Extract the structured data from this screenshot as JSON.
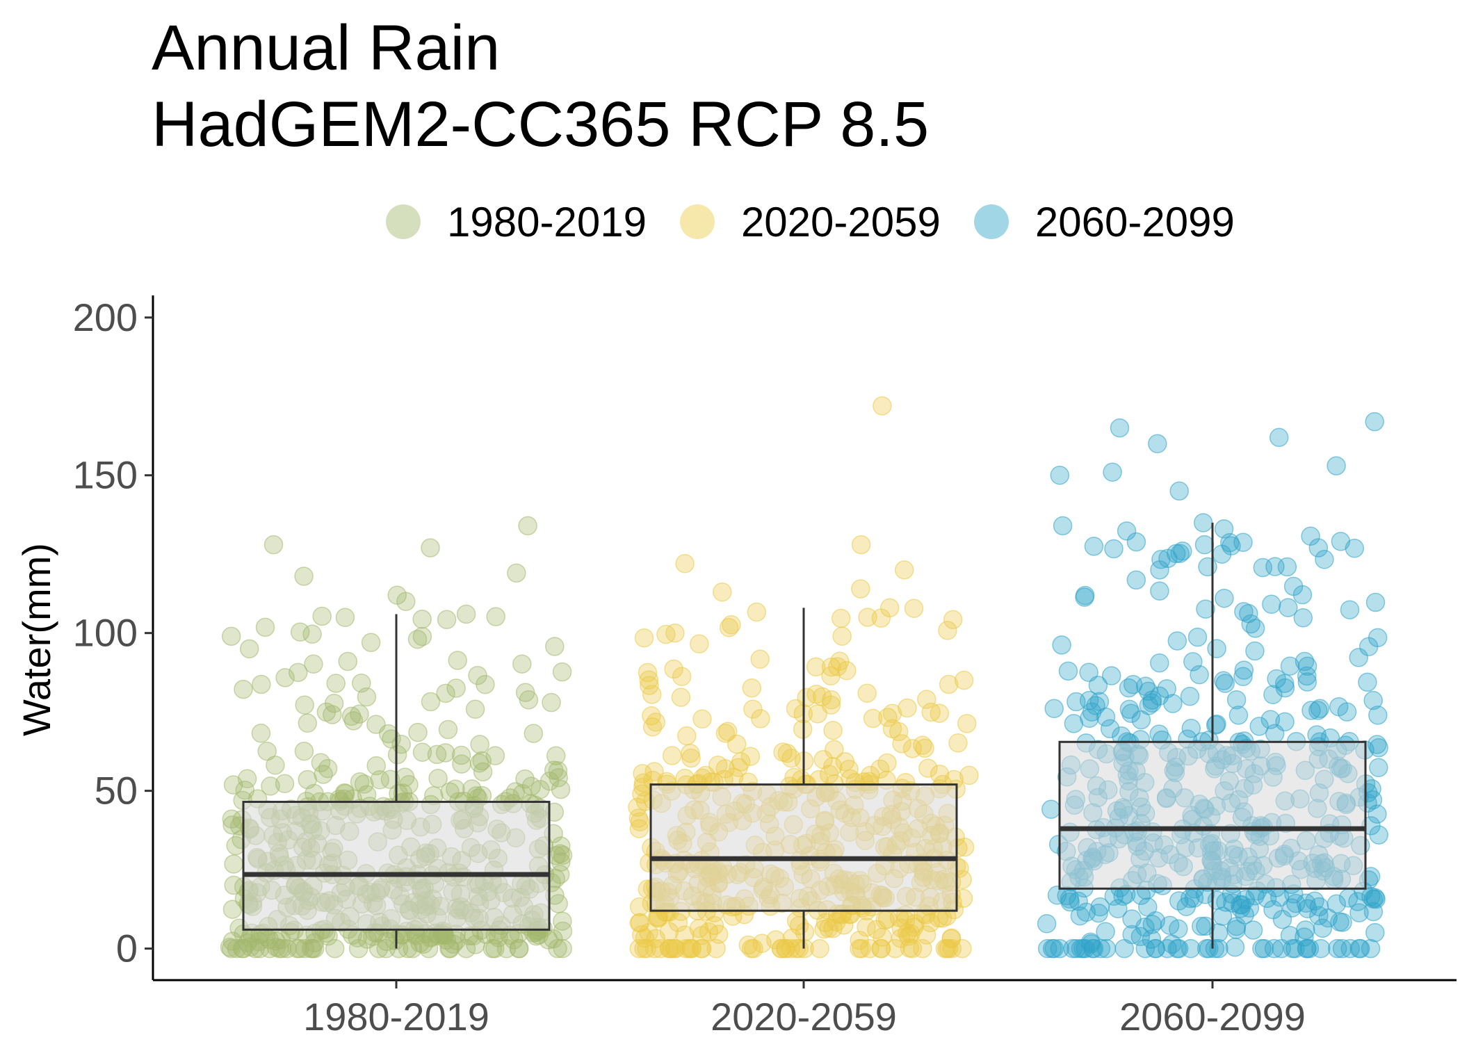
{
  "chart_data": {
    "type": "boxplot",
    "title_lines": [
      "Annual Rain",
      "HadGEM2-CC365 RCP 8.5"
    ],
    "xlabel": "",
    "ylabel": "Water(mm)",
    "ylim": [
      -10,
      207
    ],
    "yticks": [
      0,
      50,
      100,
      150,
      200
    ],
    "categories": [
      "1980-2019",
      "2020-2059",
      "2060-2099"
    ],
    "legend": {
      "position": "top",
      "entries": [
        "1980-2019",
        "2020-2059",
        "2060-2099"
      ]
    },
    "colors": [
      "#a3b86c",
      "#ebc944",
      "#2ea3c8"
    ],
    "boxes": [
      {
        "category": "1980-2019",
        "whisker_low": 0,
        "q1": 6,
        "median": 23.5,
        "q3": 46.5,
        "whisker_high": 106
      },
      {
        "category": "2020-2059",
        "whisker_low": 0,
        "q1": 12,
        "median": 28.5,
        "q3": 52,
        "whisker_high": 108
      },
      {
        "category": "2060-2099",
        "whisker_low": 0,
        "q1": 19,
        "median": 38,
        "q3": 65.5,
        "whisker_high": 135
      }
    ],
    "outliers": [
      {
        "category": "2020-2059",
        "values": [
          172
        ]
      },
      {
        "category": "2060-2099",
        "values": [
          138,
          145,
          150,
          151,
          153,
          160,
          162,
          165,
          167
        ]
      }
    ],
    "jitter_points": {
      "count_per_group": 480,
      "note_values": "individual jittered observations; distribution summarized by boxes",
      "notable_high_values": {
        "1980-2019": [
          134,
          128,
          127,
          119,
          118,
          112,
          110,
          106,
          97,
          95
        ],
        "2020-2059": [
          172,
          128,
          122,
          120,
          114,
          113,
          108,
          105,
          100,
          99
        ],
        "2060-2099": [
          167,
          165,
          162,
          160,
          153,
          151,
          150,
          145,
          134,
          133,
          128,
          127,
          125,
          121,
          120
        ]
      }
    }
  }
}
